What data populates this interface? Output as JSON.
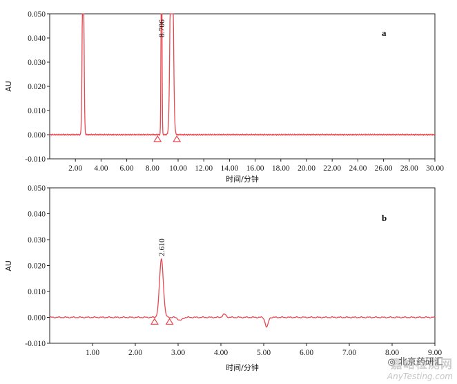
{
  "chart_data": [
    {
      "type": "line",
      "panel_label": "a",
      "xlabel": "时间/分钟",
      "ylabel": "AU",
      "xlim": [
        0,
        30
      ],
      "ylim": [
        -0.01,
        0.05
      ],
      "x_ticks": [
        "2.00",
        "4.00",
        "6.00",
        "8.00",
        "10.00",
        "12.00",
        "14.00",
        "16.00",
        "18.00",
        "20.00",
        "22.00",
        "24.00",
        "26.00",
        "28.00",
        "30.00"
      ],
      "y_ticks": [
        "0.050",
        "0.040",
        "0.030",
        "0.020",
        "0.010",
        "0.000",
        "-0.010"
      ],
      "series_color": "#e8474f",
      "peaks": [
        {
          "rt": 2.6,
          "height": 0.09,
          "width": 0.06,
          "label": ""
        },
        {
          "rt": 8.706,
          "height": 0.09,
          "width": 0.035,
          "label": "8.706"
        },
        {
          "rt": 9.5,
          "height": 0.12,
          "width": 0.1,
          "label": ""
        }
      ],
      "baseline_markers": [
        8.4,
        9.9
      ]
    },
    {
      "type": "line",
      "panel_label": "b",
      "xlabel": "时间/分钟",
      "ylabel": "AU",
      "xlim": [
        0,
        9
      ],
      "ylim": [
        -0.01,
        0.05
      ],
      "x_ticks": [
        "1.00",
        "2.00",
        "3.00",
        "4.00",
        "5.00",
        "6.00",
        "7.00",
        "8.00",
        "9.00"
      ],
      "y_ticks": [
        "0.050",
        "0.040",
        "0.030",
        "0.020",
        "0.010",
        "0.000",
        "-0.010"
      ],
      "series_color": "#e8474f",
      "peaks": [
        {
          "rt": 2.61,
          "height": 0.0225,
          "width": 0.045,
          "label": "2.610"
        },
        {
          "rt": 3.05,
          "height": -0.0012,
          "width": 0.05,
          "label": ""
        },
        {
          "rt": 4.08,
          "height": 0.0012,
          "width": 0.04,
          "label": ""
        },
        {
          "rt": 5.07,
          "height": -0.0038,
          "width": 0.035,
          "label": ""
        }
      ],
      "baseline_markers": [
        2.45,
        2.8
      ]
    }
  ],
  "watermark": {
    "brand": "北京药研汇",
    "main": "嘉峪检测网",
    "sub": "AnyTesting.com"
  }
}
